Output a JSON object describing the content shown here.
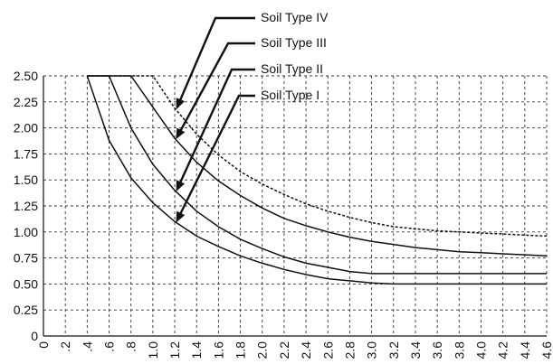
{
  "chart_data": {
    "type": "line",
    "title": "",
    "xlabel": "",
    "ylabel": "",
    "xlim": [
      0,
      4.6
    ],
    "ylim": [
      0,
      2.5
    ],
    "grid": true,
    "legend": "top-center, arrows pointing to curves",
    "x_ticks": [
      "0",
      ".2",
      ".4",
      ".6",
      ".8",
      "1.0",
      "1.2",
      "1.4",
      "1.6",
      "1.8",
      "2.0",
      "2.2",
      "2.4",
      "2.6",
      "2.8",
      "3.0",
      "3.2",
      "3.4",
      "3.6",
      "3.8",
      "4.0",
      "4.2",
      "4.4",
      "4.6"
    ],
    "y_ticks": [
      "0",
      "0.25",
      "0.50",
      "0.75",
      "1.00",
      "1.25",
      "1.50",
      "1.75",
      "2.00",
      "2.25",
      "2.50"
    ],
    "series": [
      {
        "name": "Soil Type IV",
        "x": [
          0.4,
          1.0,
          1.2,
          1.4,
          1.6,
          1.8,
          2.0,
          2.2,
          2.4,
          2.6,
          2.8,
          3.0,
          3.2,
          3.4,
          3.6,
          3.8,
          4.0,
          4.2,
          4.4,
          4.6
        ],
        "values": [
          2.5,
          2.5,
          2.19,
          1.94,
          1.74,
          1.58,
          1.46,
          1.36,
          1.27,
          1.2,
          1.14,
          1.09,
          1.05,
          1.03,
          1.01,
          1.0,
          0.99,
          0.98,
          0.97,
          0.96
        ]
      },
      {
        "name": "Soil Type III",
        "x": [
          0.4,
          0.8,
          1.0,
          1.2,
          1.4,
          1.6,
          1.8,
          2.0,
          2.2,
          2.4,
          2.6,
          2.8,
          3.0,
          3.2,
          3.4,
          3.6,
          3.8,
          4.0,
          4.2,
          4.4,
          4.6
        ],
        "values": [
          2.5,
          2.5,
          2.2,
          1.9,
          1.67,
          1.49,
          1.35,
          1.23,
          1.13,
          1.06,
          1.0,
          0.95,
          0.91,
          0.88,
          0.85,
          0.83,
          0.81,
          0.8,
          0.79,
          0.78,
          0.77
        ]
      },
      {
        "name": "Soil Type II",
        "x": [
          0.4,
          0.6,
          0.8,
          1.0,
          1.2,
          1.4,
          1.6,
          1.8,
          2.0,
          2.2,
          2.4,
          2.6,
          2.8,
          3.0,
          3.2,
          3.4,
          3.6,
          3.8,
          4.0,
          4.2,
          4.4,
          4.6
        ],
        "values": [
          2.5,
          2.5,
          2.0,
          1.65,
          1.4,
          1.2,
          1.05,
          0.93,
          0.84,
          0.76,
          0.7,
          0.66,
          0.62,
          0.6,
          0.6,
          0.6,
          0.6,
          0.6,
          0.6,
          0.6,
          0.6,
          0.6
        ]
      },
      {
        "name": "Soil Type I",
        "x": [
          0.4,
          0.6,
          0.8,
          1.0,
          1.2,
          1.4,
          1.6,
          1.8,
          2.0,
          2.2,
          2.4,
          2.6,
          2.8,
          3.0,
          3.2,
          3.4,
          3.6,
          3.8,
          4.0,
          4.2,
          4.4,
          4.6
        ],
        "values": [
          2.5,
          1.88,
          1.52,
          1.28,
          1.1,
          0.96,
          0.86,
          0.77,
          0.7,
          0.64,
          0.59,
          0.55,
          0.53,
          0.51,
          0.5,
          0.5,
          0.5,
          0.5,
          0.5,
          0.5,
          0.5,
          0.5
        ]
      }
    ],
    "annotations": [
      {
        "text": "Soil Type IV",
        "points_to": {
          "x": 1.2,
          "y": 2.19
        }
      },
      {
        "text": "Soil Type III",
        "points_to": {
          "x": 1.2,
          "y": 1.9
        }
      },
      {
        "text": "Soil Type II",
        "points_to": {
          "x": 1.2,
          "y": 1.4
        }
      },
      {
        "text": "Soil Type I",
        "points_to": {
          "x": 1.2,
          "y": 1.1
        }
      }
    ]
  }
}
